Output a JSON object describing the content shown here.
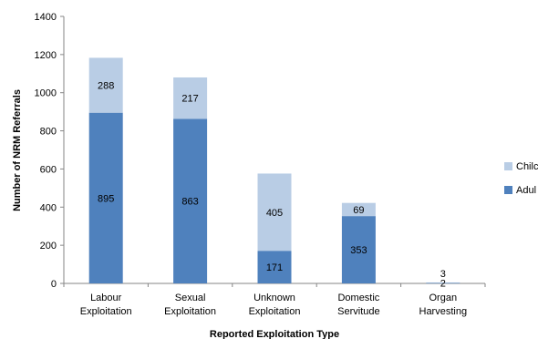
{
  "chart_data": {
    "type": "bar",
    "stacked": true,
    "categories": [
      [
        "Labour",
        "Exploitation"
      ],
      [
        "Sexual",
        "Exploitation"
      ],
      [
        "Unknown",
        "Exploitation"
      ],
      [
        "Domestic",
        "Servitude"
      ],
      [
        "Organ",
        "Harvesting"
      ]
    ],
    "series": [
      {
        "name": "Adult",
        "values": [
          895,
          863,
          171,
          353,
          2
        ],
        "color": "#4f81bd"
      },
      {
        "name": "Child",
        "values": [
          288,
          217,
          405,
          69,
          3
        ],
        "color": "#b9cde5"
      }
    ],
    "xlabel": "Reported Exploitation Type",
    "ylabel": "Number of NRM Referrals",
    "ylim": [
      0,
      1400
    ],
    "yticks": [
      0,
      200,
      400,
      600,
      800,
      1000,
      1200,
      1400
    ],
    "legend_position": "right",
    "legend_display": [
      "Chilc",
      "Adul"
    ],
    "grid": false
  }
}
